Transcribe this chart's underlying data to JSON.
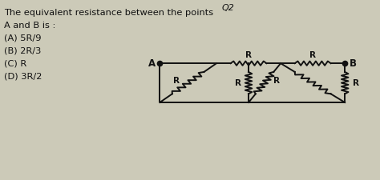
{
  "title_line1": "The equivalent resistance between the points",
  "title_line2": "A and B is :",
  "options": [
    "(A) 5R/9",
    "(B) 2R/3",
    "(C) R",
    "(D) 3R/2"
  ],
  "top_label": "Q2",
  "bg_color": "#cccab8",
  "text_color": "#111111",
  "circuit_color": "#111111",
  "A": [
    4.2,
    6.5
  ],
  "B": [
    9.1,
    6.5
  ],
  "n1": [
    5.7,
    6.5
  ],
  "n2": [
    7.4,
    6.5
  ],
  "bl": [
    4.2,
    4.3
  ],
  "bc": [
    6.55,
    4.3
  ],
  "br": [
    9.1,
    4.3
  ]
}
